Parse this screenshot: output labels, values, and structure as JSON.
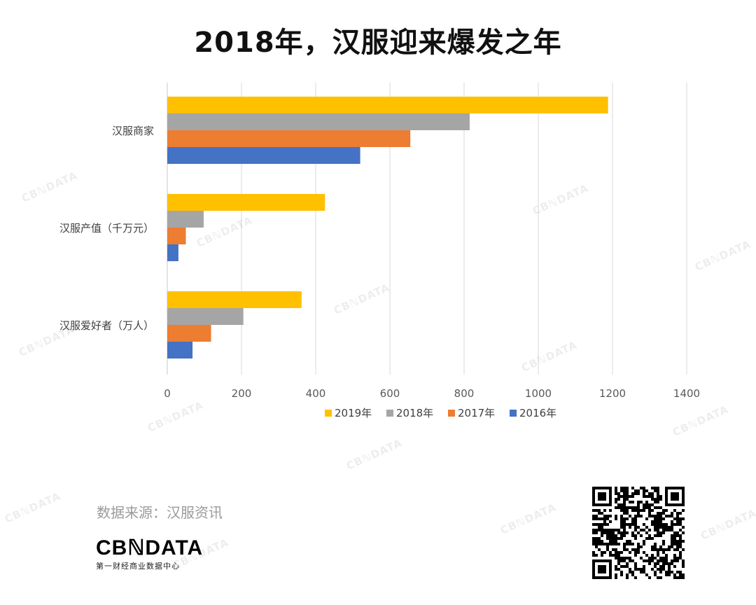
{
  "title": "2018年，汉服迎来爆发之年",
  "source": "数据来源：汉服资讯",
  "logo": {
    "name": "CBℕDATA",
    "subtitle": "第一财经商业数据中心"
  },
  "watermark_text": "CBℕDATA",
  "colors": {
    "2019年": "#ffc000",
    "2018年": "#a5a5a5",
    "2017年": "#ed7d31",
    "2016年": "#4472c4",
    "grid": "#d9d9d9"
  },
  "chart_data": {
    "type": "bar",
    "orientation": "horizontal",
    "categories": [
      "汉服商家",
      "汉服产值（千万元）",
      "汉服爱好者（万人）"
    ],
    "series": [
      {
        "name": "2019年",
        "values": [
          1188,
          425,
          362
        ]
      },
      {
        "name": "2018年",
        "values": [
          815,
          98,
          205
        ]
      },
      {
        "name": "2017年",
        "values": [
          655,
          50,
          118
        ]
      },
      {
        "name": "2016年",
        "values": [
          520,
          30,
          68
        ]
      }
    ],
    "xlim": [
      0,
      1400
    ],
    "xticks": [
      "0",
      "200",
      "400",
      "600",
      "800",
      "1000",
      "1200",
      "1400"
    ],
    "grid": true,
    "legend": "bottom"
  }
}
